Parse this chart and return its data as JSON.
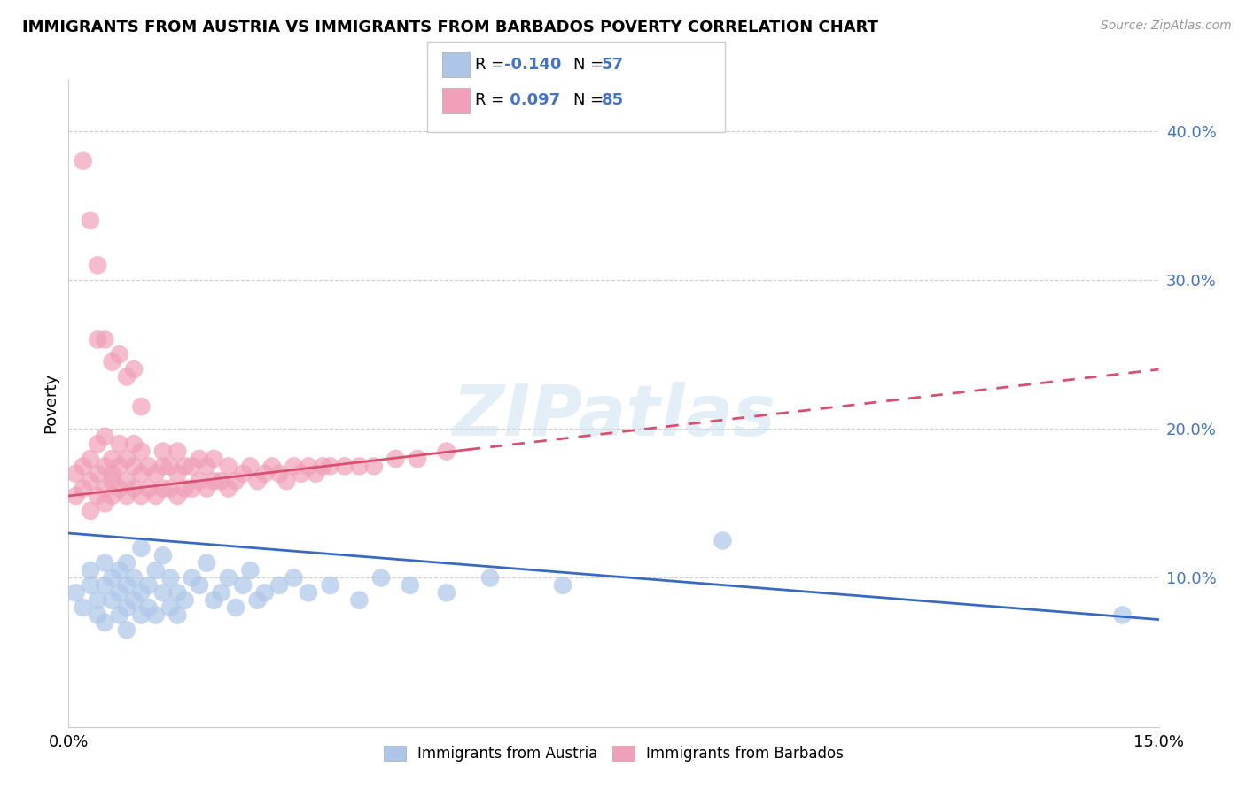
{
  "title": "IMMIGRANTS FROM AUSTRIA VS IMMIGRANTS FROM BARBADOS POVERTY CORRELATION CHART",
  "source": "Source: ZipAtlas.com",
  "ylabel": "Poverty",
  "ytick_vals": [
    0.1,
    0.2,
    0.3,
    0.4
  ],
  "xlim": [
    0.0,
    0.15
  ],
  "ylim": [
    0.0,
    0.435
  ],
  "austria_R": -0.14,
  "austria_N": 57,
  "barbados_R": 0.097,
  "barbados_N": 85,
  "austria_color": "#adc6e8",
  "barbados_color": "#f0a0b8",
  "austria_line_color": "#3a6abf",
  "barbados_line_color": "#d85070",
  "legend_austria_face": "#adc6e8",
  "legend_barbados_face": "#f0a0b8",
  "watermark": "ZIPatlas",
  "austria_scatter_x": [
    0.001,
    0.002,
    0.003,
    0.003,
    0.004,
    0.004,
    0.005,
    0.005,
    0.005,
    0.006,
    0.006,
    0.007,
    0.007,
    0.007,
    0.008,
    0.008,
    0.008,
    0.008,
    0.009,
    0.009,
    0.01,
    0.01,
    0.01,
    0.011,
    0.011,
    0.012,
    0.012,
    0.013,
    0.013,
    0.014,
    0.014,
    0.015,
    0.015,
    0.016,
    0.017,
    0.018,
    0.019,
    0.02,
    0.021,
    0.022,
    0.023,
    0.024,
    0.025,
    0.026,
    0.027,
    0.029,
    0.031,
    0.033,
    0.036,
    0.04,
    0.043,
    0.047,
    0.052,
    0.058,
    0.068,
    0.09,
    0.145
  ],
  "austria_scatter_y": [
    0.09,
    0.08,
    0.095,
    0.105,
    0.075,
    0.085,
    0.11,
    0.095,
    0.07,
    0.085,
    0.1,
    0.09,
    0.075,
    0.105,
    0.095,
    0.08,
    0.11,
    0.065,
    0.085,
    0.1,
    0.075,
    0.09,
    0.12,
    0.08,
    0.095,
    0.105,
    0.075,
    0.09,
    0.115,
    0.08,
    0.1,
    0.09,
    0.075,
    0.085,
    0.1,
    0.095,
    0.11,
    0.085,
    0.09,
    0.1,
    0.08,
    0.095,
    0.105,
    0.085,
    0.09,
    0.095,
    0.1,
    0.09,
    0.095,
    0.085,
    0.1,
    0.095,
    0.09,
    0.1,
    0.095,
    0.125,
    0.075
  ],
  "barbados_scatter_x": [
    0.001,
    0.001,
    0.002,
    0.002,
    0.003,
    0.003,
    0.003,
    0.004,
    0.004,
    0.004,
    0.005,
    0.005,
    0.005,
    0.005,
    0.006,
    0.006,
    0.006,
    0.006,
    0.007,
    0.007,
    0.007,
    0.008,
    0.008,
    0.008,
    0.009,
    0.009,
    0.009,
    0.01,
    0.01,
    0.01,
    0.011,
    0.011,
    0.012,
    0.012,
    0.013,
    0.013,
    0.013,
    0.014,
    0.014,
    0.015,
    0.015,
    0.015,
    0.016,
    0.016,
    0.017,
    0.017,
    0.018,
    0.018,
    0.019,
    0.019,
    0.02,
    0.02,
    0.021,
    0.022,
    0.022,
    0.023,
    0.024,
    0.025,
    0.026,
    0.027,
    0.028,
    0.029,
    0.03,
    0.031,
    0.032,
    0.033,
    0.034,
    0.035,
    0.036,
    0.038,
    0.04,
    0.042,
    0.045,
    0.048,
    0.052,
    0.002,
    0.003,
    0.004,
    0.004,
    0.005,
    0.006,
    0.007,
    0.008,
    0.009,
    0.01
  ],
  "barbados_scatter_y": [
    0.155,
    0.17,
    0.16,
    0.175,
    0.145,
    0.165,
    0.18,
    0.155,
    0.17,
    0.19,
    0.16,
    0.175,
    0.15,
    0.195,
    0.165,
    0.18,
    0.155,
    0.17,
    0.16,
    0.175,
    0.19,
    0.155,
    0.165,
    0.18,
    0.16,
    0.175,
    0.19,
    0.155,
    0.17,
    0.185,
    0.16,
    0.175,
    0.155,
    0.17,
    0.16,
    0.175,
    0.185,
    0.16,
    0.175,
    0.155,
    0.17,
    0.185,
    0.16,
    0.175,
    0.16,
    0.175,
    0.165,
    0.18,
    0.16,
    0.175,
    0.165,
    0.18,
    0.165,
    0.16,
    0.175,
    0.165,
    0.17,
    0.175,
    0.165,
    0.17,
    0.175,
    0.17,
    0.165,
    0.175,
    0.17,
    0.175,
    0.17,
    0.175,
    0.175,
    0.175,
    0.175,
    0.175,
    0.18,
    0.18,
    0.185,
    0.38,
    0.34,
    0.31,
    0.26,
    0.26,
    0.245,
    0.25,
    0.235,
    0.24,
    0.215
  ],
  "austria_line_x0": 0.0,
  "austria_line_x1": 0.15,
  "austria_line_y0": 0.13,
  "austria_line_y1": 0.072,
  "barbados_line_x0": 0.0,
  "barbados_line_x1": 0.15,
  "barbados_line_y0": 0.155,
  "barbados_line_y1": 0.24
}
